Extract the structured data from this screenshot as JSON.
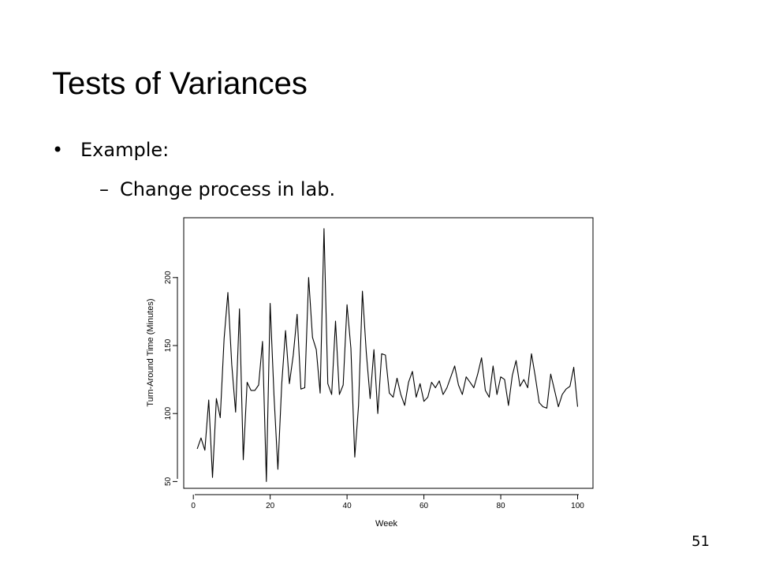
{
  "slide": {
    "title": "Tests of Variances",
    "bullet_marker": "•",
    "bullet": "Example:",
    "sub_marker": "–",
    "sub_bullet": "Change process in lab.",
    "page_number": "51"
  },
  "chart_data": {
    "type": "line",
    "title": "",
    "xlabel": "Week",
    "ylabel": "Turn-Around Time (Minutes)",
    "xlim": [
      -2.5,
      104
    ],
    "ylim": [
      45,
      244
    ],
    "x_ticks": [
      0,
      20,
      40,
      60,
      80,
      100
    ],
    "y_ticks": [
      50,
      100,
      150,
      200
    ],
    "grid": false,
    "series": [
      {
        "x": [
          1,
          2,
          3,
          4,
          5,
          6,
          7,
          8,
          9,
          10,
          11,
          12,
          13,
          14,
          15,
          16,
          17,
          18,
          19,
          20,
          21,
          22,
          23,
          24,
          25,
          26,
          27,
          28,
          29,
          30,
          31,
          32,
          33,
          34,
          35,
          36,
          37,
          38,
          39,
          40,
          41,
          42,
          43,
          44,
          45,
          46,
          47,
          48,
          49,
          50,
          51,
          52,
          53,
          54,
          55,
          56,
          57,
          58,
          59,
          60,
          61,
          62,
          63,
          64,
          65,
          66,
          67,
          68,
          69,
          70,
          71,
          72,
          73,
          74,
          75,
          76,
          77,
          78,
          79,
          80,
          81,
          82,
          83,
          84,
          85,
          86,
          87,
          88,
          89,
          90,
          91,
          92,
          93,
          94,
          95,
          96,
          97,
          98,
          99,
          100
        ],
        "values": [
          74,
          82,
          73,
          110,
          53,
          111,
          97,
          155,
          189,
          136,
          101,
          177,
          66,
          123,
          117,
          117,
          121,
          153,
          50,
          181,
          113,
          59,
          122,
          161,
          122,
          143,
          173,
          118,
          119,
          200,
          156,
          147,
          115,
          236,
          122,
          114,
          168,
          114,
          121,
          180,
          148,
          68,
          106,
          190,
          145,
          111,
          147,
          100,
          144,
          143,
          115,
          112,
          126,
          114,
          106,
          123,
          131,
          112,
          122,
          109,
          112,
          123,
          119,
          124,
          114,
          119,
          127,
          135,
          121,
          114,
          127,
          123,
          119,
          129,
          141,
          117,
          112,
          135,
          114,
          127,
          125,
          106,
          128,
          139,
          120,
          125,
          119,
          144,
          127,
          108,
          105,
          104,
          129,
          117,
          105,
          114,
          118,
          120,
          134,
          105
        ]
      }
    ]
  }
}
